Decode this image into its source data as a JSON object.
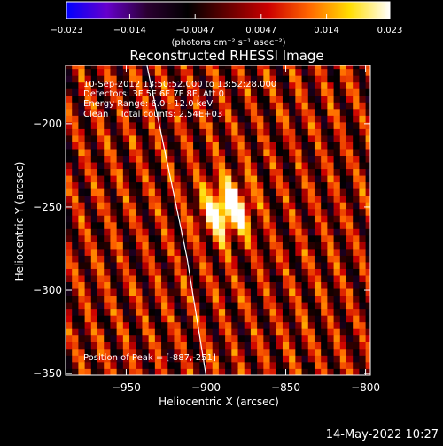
{
  "chart_data": {
    "type": "heatmap",
    "title": "Reconstructed RHESSI Image",
    "xlabel": "Heliocentric X (arcsec)",
    "ylabel": "Heliocentric Y (arcsec)",
    "xlim": [
      -988,
      -797
    ],
    "ylim": [
      -351,
      -165
    ],
    "x_ticks": [
      {
        "value": -950,
        "label": "−950"
      },
      {
        "value": -900,
        "label": "−900"
      },
      {
        "value": -850,
        "label": "−850"
      },
      {
        "value": -800,
        "label": "−800"
      }
    ],
    "y_ticks": [
      {
        "value": -200,
        "label": "−200"
      },
      {
        "value": -250,
        "label": "−250"
      },
      {
        "value": -300,
        "label": "−300"
      },
      {
        "value": -350,
        "label": "−350"
      }
    ],
    "colorbar": {
      "range": [
        -0.023,
        0.023
      ],
      "ticks": [
        {
          "value": -0.023,
          "label": "−0.023"
        },
        {
          "value": -0.014,
          "label": "−0.014"
        },
        {
          "value": -0.0047,
          "label": "−0.0047"
        },
        {
          "value": 0.0047,
          "label": "0.0047"
        },
        {
          "value": 0.014,
          "label": "0.014"
        },
        {
          "value": 0.023,
          "label": "0.023"
        }
      ],
      "unit_label": "(photons cm⁻² s⁻¹ asec⁻²)",
      "colors": [
        "#0000ff",
        "#6600cc",
        "#2a0030",
        "#000000",
        "#660000",
        "#cc0000",
        "#ff6600",
        "#ffdd00",
        "#ffffff"
      ]
    },
    "annotations": [
      "10-Sep-2012 13:50:52.000 to 13:52:28.000",
      "Detectors: 3F 5F 6F 7F 8F, Att 0",
      "Energy Range: 6.0 - 12.0 keV",
      "Clean    Total counts: 2.54E+03",
      "Position of Peak = [-887,-251]"
    ],
    "peak_position": [
      -887,
      -251
    ],
    "total_counts": 2540,
    "limb_color": "#ffffff"
  },
  "footer_date": "14-May-2022 10:27"
}
